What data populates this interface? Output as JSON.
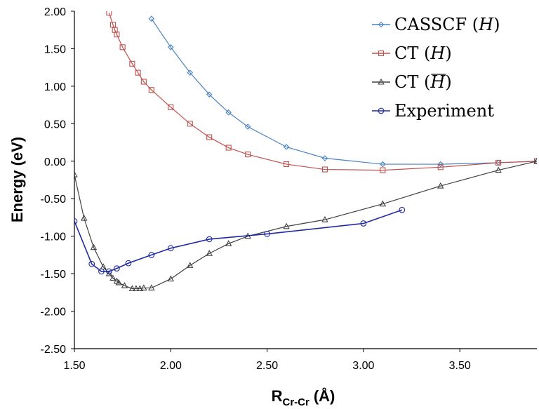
{
  "chart_data": {
    "type": "line",
    "xlabel_main": "R",
    "xlabel_sub": "Cr-Cr",
    "xlabel_unit": "(Å)",
    "ylabel": "Energy (eV)",
    "xlim": [
      1.5,
      3.9
    ],
    "ylim": [
      -2.5,
      2.0
    ],
    "x_ticks": [
      1.5,
      2.0,
      2.5,
      3.0,
      3.5
    ],
    "x_tick_labels": [
      "1.50",
      "2.00",
      "2.50",
      "3.00",
      "3.50"
    ],
    "y_ticks": [
      2.0,
      1.5,
      1.0,
      0.5,
      0.0,
      -0.5,
      -1.0,
      -1.5,
      -2.0,
      -2.5
    ],
    "y_tick_labels": [
      "2.00",
      "1.50",
      "1.00",
      "0.50",
      "0.00",
      "-0.50",
      "-1.00",
      "-1.50",
      "-2.00",
      "-2.50"
    ],
    "grid": false,
    "legend_position": "top-right",
    "series": [
      {
        "name": "CASSCF",
        "legend_prefix": "CASSCF (",
        "legend_symbol": "H",
        "legend_suffix": ")",
        "legend_bar": false,
        "color": "#4a82c0",
        "marker": "diamond",
        "x": [
          1.9,
          2.0,
          2.1,
          2.2,
          2.3,
          2.4,
          2.6,
          2.8,
          3.1,
          3.4,
          3.7,
          3.9
        ],
        "y": [
          1.9,
          1.52,
          1.18,
          0.89,
          0.65,
          0.46,
          0.19,
          0.04,
          -0.04,
          -0.04,
          -0.02,
          0.0
        ]
      },
      {
        "name": "CT",
        "legend_prefix": "CT (",
        "legend_symbol": "H",
        "legend_suffix": ")",
        "legend_bar": false,
        "color": "#c0504d",
        "marker": "square",
        "x": [
          1.68,
          1.7,
          1.71,
          1.72,
          1.75,
          1.8,
          1.83,
          1.86,
          1.9,
          2.0,
          2.1,
          2.2,
          2.3,
          2.4,
          2.6,
          2.8,
          3.1,
          3.4,
          3.7,
          3.9
        ],
        "y": [
          1.98,
          1.82,
          1.75,
          1.69,
          1.52,
          1.3,
          1.18,
          1.06,
          0.95,
          0.72,
          0.5,
          0.32,
          0.18,
          0.09,
          -0.04,
          -0.11,
          -0.12,
          -0.08,
          -0.02,
          0.0
        ]
      },
      {
        "name": "CT",
        "legend_prefix": "CT (",
        "legend_symbol": "H",
        "legend_suffix": ")",
        "legend_bar": true,
        "color": "#404040",
        "marker": "triangle",
        "x": [
          1.5,
          1.55,
          1.6,
          1.65,
          1.68,
          1.7,
          1.72,
          1.73,
          1.76,
          1.8,
          1.82,
          1.84,
          1.86,
          1.9,
          2.0,
          2.1,
          2.2,
          2.3,
          2.4,
          2.6,
          2.8,
          3.1,
          3.4,
          3.7,
          3.9
        ],
        "y": [
          -0.18,
          -0.76,
          -1.15,
          -1.41,
          -1.5,
          -1.56,
          -1.6,
          -1.62,
          -1.66,
          -1.7,
          -1.7,
          -1.7,
          -1.69,
          -1.69,
          -1.57,
          -1.39,
          -1.23,
          -1.1,
          -1.0,
          -0.87,
          -0.78,
          -0.57,
          -0.33,
          -0.12,
          0.0
        ]
      },
      {
        "name": "Experiment",
        "legend_prefix": "Experiment",
        "legend_symbol": "",
        "legend_suffix": "",
        "legend_bar": false,
        "color": "#1f2aa0",
        "marker": "circle",
        "x": [
          1.5,
          1.59,
          1.64,
          1.68,
          1.72,
          1.78,
          1.9,
          2.0,
          2.2,
          2.5,
          3.0,
          3.2
        ],
        "y": [
          -0.8,
          -1.37,
          -1.47,
          -1.47,
          -1.43,
          -1.36,
          -1.25,
          -1.16,
          -1.04,
          -0.97,
          -0.83,
          -0.65
        ]
      }
    ]
  }
}
